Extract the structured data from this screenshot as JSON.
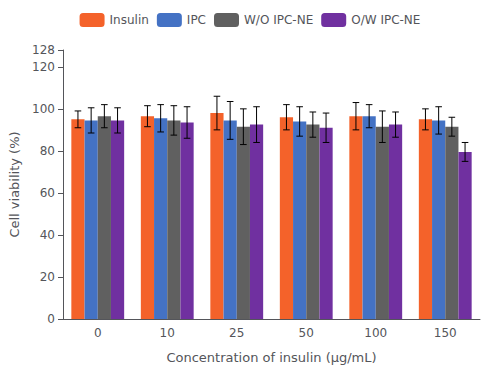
{
  "chart_data": {
    "type": "bar",
    "xlabel": "Concentration of insulin (μg/mL)",
    "ylabel": "Cell viability (%)",
    "categories": [
      "0",
      "10",
      "25",
      "50",
      "100",
      "150"
    ],
    "series": [
      {
        "name": "Insulin",
        "color": "#F4622A",
        "values": [
          95.0,
          96.5,
          98.0,
          96.0,
          96.5,
          95.0
        ],
        "errors": [
          4.0,
          5.0,
          8.0,
          6.0,
          6.5,
          5.0
        ]
      },
      {
        "name": "IPC",
        "color": "#4472C4",
        "values": [
          94.5,
          95.5,
          94.5,
          94.0,
          96.5,
          94.5
        ],
        "errors": [
          6.0,
          6.5,
          9.0,
          7.0,
          5.5,
          6.5
        ]
      },
      {
        "name": "W/O IPC-NE",
        "color": "#606060",
        "values": [
          96.5,
          94.5,
          91.5,
          92.5,
          91.5,
          91.5
        ],
        "errors": [
          5.5,
          7.0,
          8.5,
          6.0,
          7.5,
          4.5
        ]
      },
      {
        "name": "O/W IPC-NE",
        "color": "#7030A0",
        "values": [
          94.5,
          93.5,
          92.5,
          91.0,
          92.5,
          79.5
        ],
        "errors": [
          6.0,
          7.5,
          8.5,
          7.0,
          6.0,
          4.5
        ]
      }
    ],
    "ylim": [
      0,
      128
    ],
    "yticks": [
      0,
      20,
      40,
      60,
      80,
      100,
      120
    ],
    "grid": false,
    "legend": "top"
  }
}
